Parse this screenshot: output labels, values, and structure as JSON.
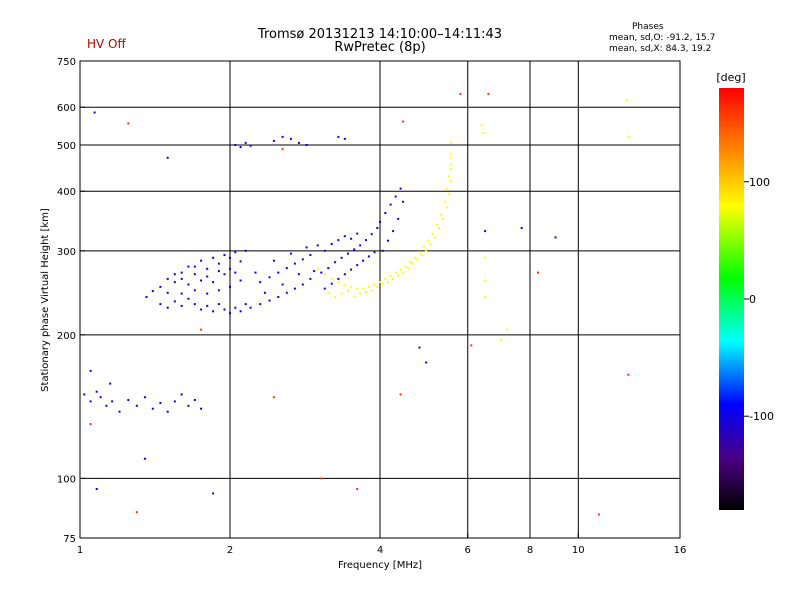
{
  "header": {
    "title_line1": "Tromsø 20131213 14:10:00–14:11:43",
    "title_line2": "RwPretec (8p)",
    "hv_status": "HV Off",
    "phase_title": "Phases",
    "phase_o": "mean, sd,O: -91.2, 15.7",
    "phase_x": "mean, sd,X:  84.3, 19.2"
  },
  "colors": {
    "hv": "#c00000",
    "frame": "#000000"
  },
  "chart_data": {
    "type": "scatter",
    "xlabel": "Frequency [MHz]",
    "ylabel": "Stationary phase Virtual Height [km]",
    "x_scale": "log",
    "y_scale": "log",
    "xlim": [
      1,
      16
    ],
    "ylim": [
      75,
      750
    ],
    "x_ticks": [
      1,
      2,
      4,
      6,
      8,
      10,
      16
    ],
    "x_tick_labels": [
      "1",
      "2",
      "4",
      "6",
      "8",
      "10",
      "16"
    ],
    "x_gridlines": [
      2,
      4,
      6,
      8,
      10
    ],
    "y_ticks": [
      75,
      100,
      200,
      300,
      400,
      500,
      600,
      750
    ],
    "y_tick_labels": [
      "75",
      "100",
      "200",
      "300",
      "400",
      "500",
      "600",
      "750"
    ],
    "y_gridlines": [
      100,
      200,
      300,
      400,
      500,
      600
    ],
    "colorbar": {
      "label": "[deg]",
      "range": [
        -180,
        180
      ],
      "ticks": [
        100,
        0,
        -100
      ],
      "tick_labels": [
        "100",
        "0",
        "-100"
      ]
    },
    "series": [
      {
        "name": "O-mode phase (blue, about -91 deg)",
        "phase": -95,
        "points": [
          [
            1.36,
            240
          ],
          [
            1.4,
            247
          ],
          [
            1.45,
            252
          ],
          [
            1.5,
            245
          ],
          [
            1.55,
            258
          ],
          [
            1.6,
            262
          ],
          [
            1.65,
            255
          ],
          [
            1.7,
            268
          ],
          [
            1.75,
            260
          ],
          [
            1.8,
            265
          ],
          [
            1.85,
            258
          ],
          [
            1.9,
            272
          ],
          [
            1.95,
            268
          ],
          [
            2.0,
            275
          ],
          [
            2.05,
            270
          ],
          [
            2.1,
            285
          ],
          [
            2.0,
            290
          ],
          [
            1.9,
            282
          ],
          [
            1.8,
            275
          ],
          [
            1.7,
            278
          ],
          [
            1.6,
            270
          ],
          [
            1.5,
            262
          ],
          [
            1.45,
            232
          ],
          [
            1.5,
            228
          ],
          [
            1.55,
            235
          ],
          [
            1.6,
            230
          ],
          [
            1.65,
            238
          ],
          [
            1.7,
            232
          ],
          [
            1.75,
            226
          ],
          [
            1.8,
            230
          ],
          [
            1.85,
            224
          ],
          [
            1.9,
            232
          ],
          [
            1.95,
            226
          ],
          [
            2.0,
            222
          ],
          [
            2.05,
            228
          ],
          [
            2.1,
            224
          ],
          [
            2.15,
            232
          ],
          [
            1.65,
            278
          ],
          [
            1.75,
            286
          ],
          [
            1.85,
            290
          ],
          [
            1.95,
            294
          ],
          [
            2.05,
            298
          ],
          [
            2.15,
            300
          ],
          [
            2.1,
            260
          ],
          [
            2.0,
            252
          ],
          [
            1.9,
            248
          ],
          [
            1.8,
            244
          ],
          [
            1.7,
            248
          ],
          [
            1.6,
            244
          ],
          [
            1.55,
            268
          ],
          [
            2.2,
            228
          ],
          [
            2.3,
            232
          ],
          [
            2.4,
            236
          ],
          [
            2.5,
            240
          ],
          [
            2.6,
            245
          ],
          [
            2.7,
            250
          ],
          [
            2.8,
            255
          ],
          [
            2.9,
            262
          ],
          [
            2.3,
            258
          ],
          [
            2.4,
            264
          ],
          [
            2.5,
            270
          ],
          [
            2.6,
            276
          ],
          [
            2.7,
            282
          ],
          [
            2.8,
            288
          ],
          [
            2.9,
            294
          ],
          [
            2.35,
            245
          ],
          [
            2.55,
            255
          ],
          [
            2.75,
            268
          ],
          [
            2.95,
            272
          ],
          [
            2.25,
            270
          ],
          [
            2.45,
            286
          ],
          [
            2.65,
            296
          ],
          [
            2.85,
            305
          ],
          [
            3.0,
            308
          ],
          [
            3.1,
            300
          ],
          [
            3.2,
            310
          ],
          [
            3.3,
            316
          ],
          [
            3.4,
            322
          ],
          [
            3.5,
            318
          ],
          [
            3.6,
            326
          ],
          [
            3.05,
            270
          ],
          [
            3.15,
            276
          ],
          [
            3.25,
            284
          ],
          [
            3.35,
            290
          ],
          [
            3.45,
            296
          ],
          [
            3.55,
            302
          ],
          [
            3.65,
            308
          ],
          [
            3.75,
            316
          ],
          [
            3.85,
            325
          ],
          [
            3.95,
            335
          ],
          [
            4.0,
            345
          ],
          [
            4.1,
            360
          ],
          [
            4.2,
            375
          ],
          [
            4.3,
            390
          ],
          [
            4.4,
            405
          ],
          [
            4.45,
            380
          ],
          [
            4.35,
            350
          ],
          [
            4.25,
            330
          ],
          [
            4.15,
            315
          ],
          [
            4.05,
            300
          ],
          [
            3.1,
            250
          ],
          [
            3.2,
            256
          ],
          [
            3.3,
            262
          ],
          [
            3.4,
            268
          ],
          [
            3.5,
            274
          ],
          [
            3.6,
            280
          ],
          [
            3.7,
            286
          ],
          [
            3.8,
            292
          ],
          [
            3.9,
            298
          ],
          [
            2.05,
            500
          ],
          [
            2.1,
            495
          ],
          [
            2.15,
            505
          ],
          [
            2.2,
            498
          ],
          [
            2.45,
            510
          ],
          [
            2.55,
            520
          ],
          [
            2.65,
            515
          ],
          [
            2.75,
            505
          ],
          [
            2.85,
            500
          ],
          [
            3.3,
            520
          ],
          [
            3.4,
            515
          ],
          [
            1.02,
            150
          ],
          [
            1.05,
            145
          ],
          [
            1.08,
            152
          ],
          [
            1.1,
            148
          ],
          [
            1.13,
            142
          ],
          [
            1.16,
            145
          ],
          [
            1.2,
            138
          ],
          [
            1.25,
            146
          ],
          [
            1.3,
            142
          ],
          [
            1.35,
            148
          ],
          [
            1.4,
            140
          ],
          [
            1.45,
            144
          ],
          [
            1.5,
            138
          ],
          [
            1.55,
            145
          ],
          [
            1.6,
            150
          ],
          [
            1.65,
            142
          ],
          [
            1.7,
            146
          ],
          [
            1.75,
            140
          ],
          [
            1.15,
            158
          ],
          [
            1.05,
            168
          ],
          [
            1.07,
            585
          ],
          [
            1.5,
            470
          ],
          [
            1.08,
            95
          ],
          [
            1.35,
            110
          ],
          [
            1.85,
            93
          ],
          [
            4.8,
            188
          ],
          [
            4.95,
            175
          ],
          [
            6.5,
            330
          ],
          [
            7.7,
            335
          ],
          [
            9.0,
            320
          ]
        ]
      },
      {
        "name": "X-mode phase (yellow-green, about 84 deg)",
        "phase": 80,
        "points": [
          [
            3.0,
            275
          ],
          [
            3.1,
            268
          ],
          [
            3.2,
            262
          ],
          [
            3.3,
            258
          ],
          [
            3.4,
            254
          ],
          [
            3.5,
            252
          ],
          [
            3.6,
            250
          ],
          [
            3.7,
            250
          ],
          [
            3.8,
            252
          ],
          [
            3.9,
            255
          ],
          [
            4.0,
            258
          ],
          [
            4.1,
            262
          ],
          [
            4.2,
            266
          ],
          [
            4.3,
            270
          ],
          [
            4.4,
            274
          ],
          [
            4.5,
            278
          ],
          [
            4.6,
            284
          ],
          [
            4.7,
            290
          ],
          [
            4.8,
            298
          ],
          [
            4.9,
            306
          ],
          [
            5.0,
            315
          ],
          [
            5.1,
            326
          ],
          [
            5.2,
            340
          ],
          [
            5.3,
            358
          ],
          [
            5.4,
            380
          ],
          [
            5.45,
            405
          ],
          [
            5.5,
            430
          ],
          [
            5.55,
            455
          ],
          [
            5.55,
            480
          ],
          [
            5.55,
            505
          ],
          [
            3.15,
            245
          ],
          [
            3.25,
            240
          ],
          [
            3.35,
            244
          ],
          [
            3.45,
            248
          ],
          [
            3.55,
            240
          ],
          [
            3.65,
            244
          ],
          [
            3.75,
            246
          ],
          [
            3.85,
            248
          ],
          [
            3.95,
            252
          ],
          [
            4.05,
            256
          ],
          [
            4.15,
            258
          ],
          [
            4.25,
            262
          ],
          [
            4.35,
            266
          ],
          [
            4.45,
            270
          ],
          [
            4.55,
            276
          ],
          [
            4.65,
            282
          ],
          [
            4.75,
            288
          ],
          [
            4.85,
            294
          ],
          [
            4.95,
            300
          ],
          [
            5.05,
            310
          ],
          [
            5.15,
            320
          ],
          [
            5.25,
            335
          ],
          [
            5.35,
            350
          ],
          [
            5.45,
            370
          ],
          [
            5.5,
            395
          ],
          [
            5.55,
            420
          ],
          [
            5.55,
            445
          ],
          [
            5.55,
            470
          ],
          [
            6.5,
            240
          ],
          [
            6.5,
            260
          ],
          [
            6.5,
            290
          ],
          [
            6.45,
            530
          ],
          [
            6.4,
            550
          ],
          [
            7.2,
            205
          ],
          [
            7.0,
            195
          ],
          [
            12.5,
            620
          ],
          [
            12.6,
            520
          ]
        ]
      },
      {
        "name": "scattered returns (other phases)",
        "phase": 160,
        "points": [
          [
            1.05,
            130
          ],
          [
            1.3,
            85
          ],
          [
            1.75,
            205
          ],
          [
            2.45,
            148
          ],
          [
            3.05,
            100
          ],
          [
            3.6,
            95
          ],
          [
            4.4,
            150
          ],
          [
            6.1,
            190
          ],
          [
            8.3,
            270
          ],
          [
            11.0,
            84
          ],
          [
            1.25,
            555
          ],
          [
            2.55,
            490
          ],
          [
            4.45,
            560
          ],
          [
            5.8,
            640
          ],
          [
            6.6,
            640
          ],
          [
            12.6,
            165
          ]
        ]
      }
    ]
  }
}
